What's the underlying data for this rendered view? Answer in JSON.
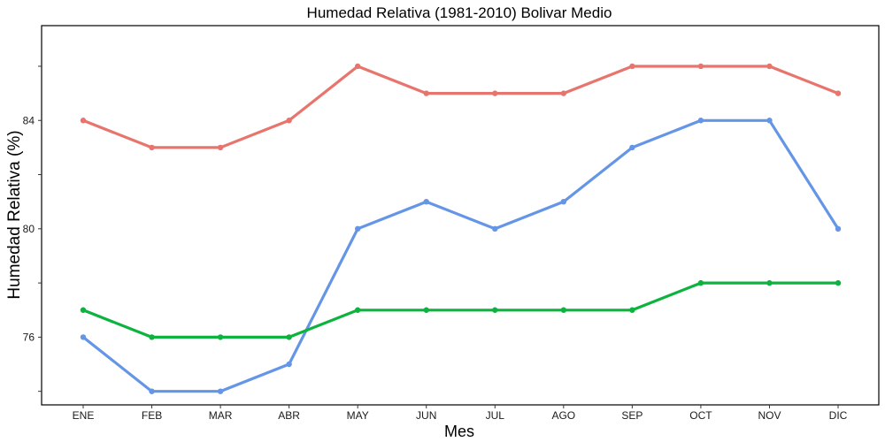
{
  "chart_data": {
    "type": "line",
    "title": "Humedad Relativa (1981-2010)  Bolivar Medio",
    "xlabel": "Mes",
    "ylabel": "Humedad Relativa   (%)",
    "categories": [
      "ENE",
      "FEB",
      "MAR",
      "ABR",
      "MAY",
      "JUN",
      "JUL",
      "AGO",
      "SEP",
      "OCT",
      "NOV",
      "DIC"
    ],
    "yticks": [
      76,
      80,
      84
    ],
    "ytick_labels": [
      "76",
      "80",
      "84"
    ],
    "ylim": [
      73.5,
      87.5
    ],
    "grid": false,
    "legend": "none",
    "series": [
      {
        "color": "#E8756D",
        "values": [
          84,
          83,
          83,
          84,
          86,
          85,
          85,
          85,
          86,
          86,
          86,
          85
        ]
      },
      {
        "color": "#6495E6",
        "values": [
          76,
          74,
          74,
          75,
          80,
          81,
          80,
          81,
          83,
          84,
          84,
          80
        ]
      },
      {
        "color": "#0DB33F",
        "values": [
          77,
          76,
          76,
          76,
          77,
          77,
          77,
          77,
          77,
          78,
          78,
          78
        ]
      }
    ]
  }
}
